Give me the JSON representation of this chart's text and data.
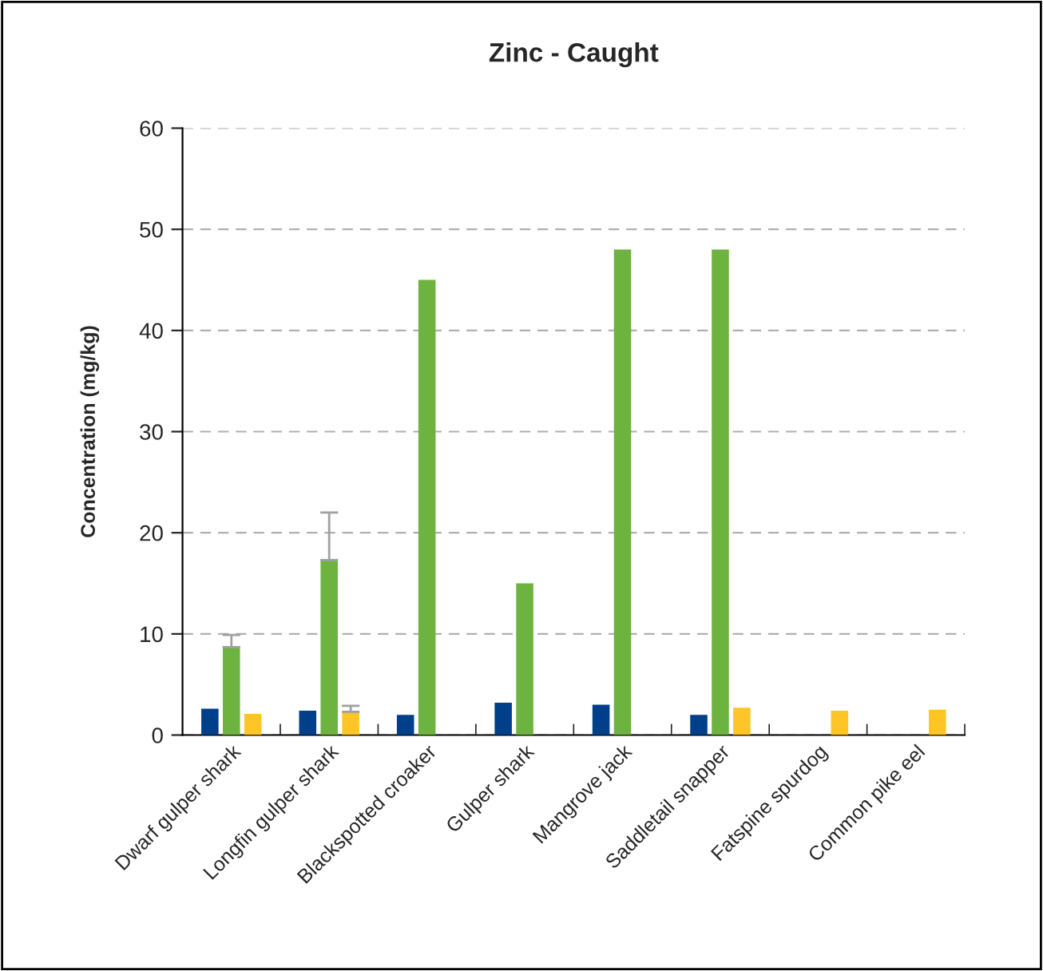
{
  "chart_data": {
    "type": "bar",
    "title": "Zinc - Caught",
    "ylabel": "Concentration (mg/kg)",
    "categories": [
      "Dwarf gulper shark",
      "Longfin gulper shark",
      "Blackspotted croaker",
      "Gulper shark",
      "Mangrove jack",
      "Saddletail snapper",
      "Fatspine spurdog",
      "Common pike eel"
    ],
    "series": [
      {
        "color": "#003f8a",
        "values": [
          2.6,
          2.4,
          2.0,
          3.2,
          3.0,
          2.0,
          null,
          null
        ]
      },
      {
        "color": "#6db33f",
        "values": [
          8.7,
          17.3,
          45,
          15,
          48,
          48,
          null,
          null
        ],
        "errors": [
          [
            8.7,
            9.9
          ],
          [
            17.3,
            22
          ],
          null,
          null,
          null,
          null,
          null,
          null
        ]
      },
      {
        "color": "#ffc425",
        "values": [
          2.1,
          2.3,
          null,
          null,
          null,
          2.7,
          2.4,
          2.5
        ],
        "errors": [
          null,
          [
            2.3,
            2.9
          ],
          null,
          null,
          null,
          null,
          null,
          null
        ]
      }
    ],
    "ylim": [
      0,
      60
    ],
    "yticks": [
      0,
      10,
      20,
      30,
      40,
      50,
      60
    ],
    "grid": "y"
  }
}
